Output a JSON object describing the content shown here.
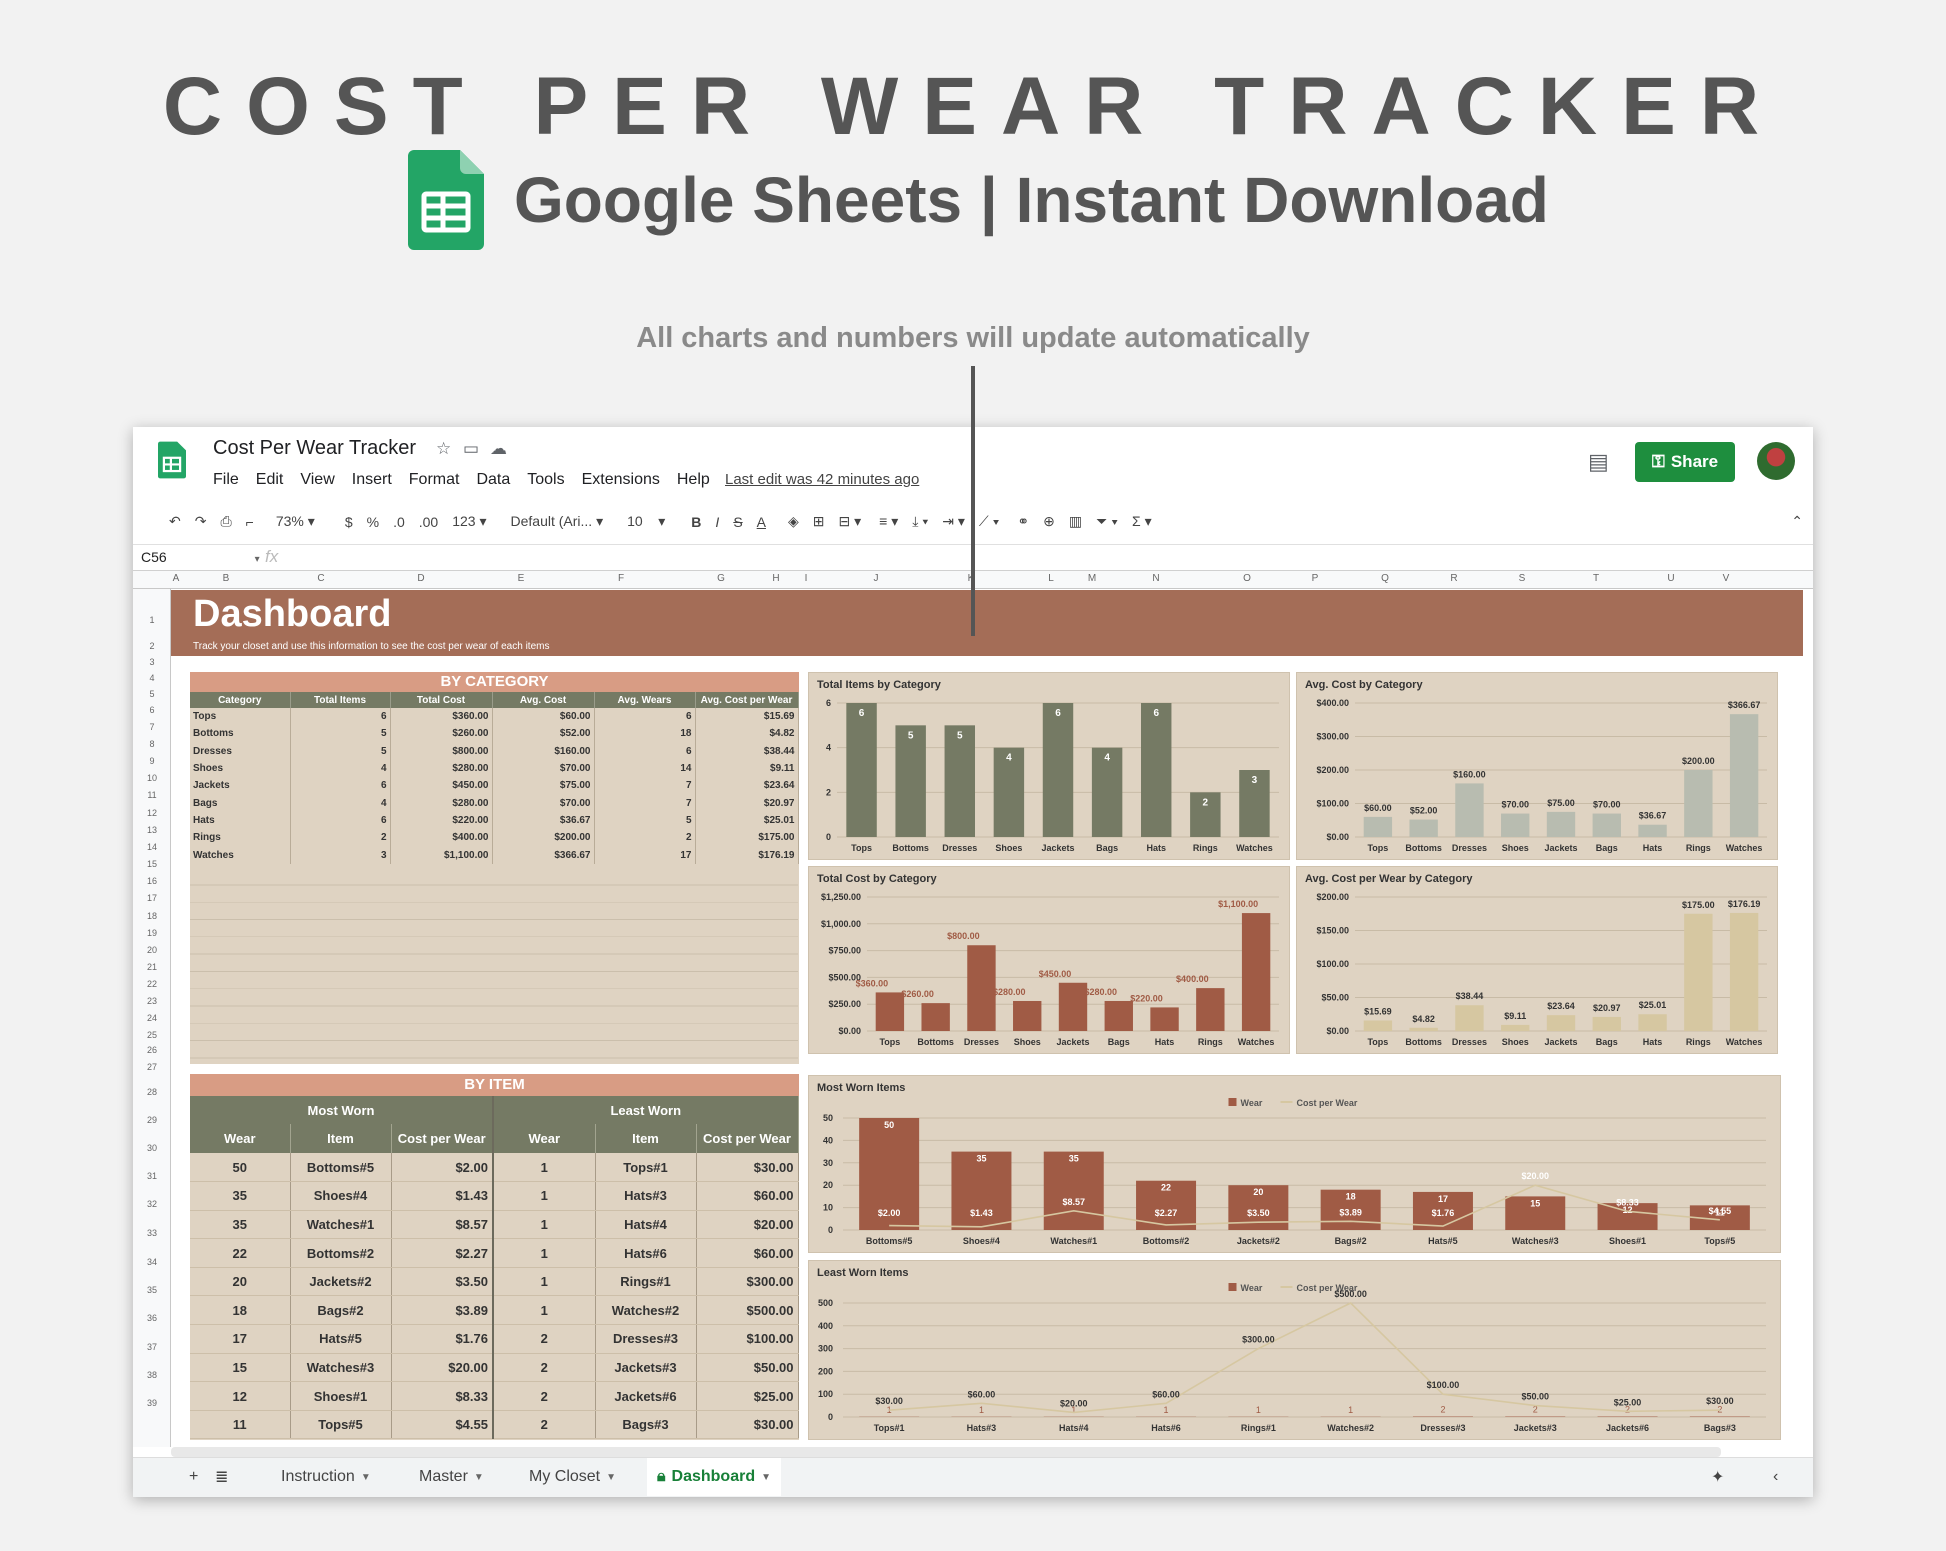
{
  "hero": {
    "title": "COST PER WEAR TRACKER",
    "subtitle": "Google Sheets | Instant Download",
    "tagline": "All charts and numbers will update automatically"
  },
  "app": {
    "doc_title": "Cost Per Wear Tracker",
    "menu": [
      "File",
      "Edit",
      "View",
      "Insert",
      "Format",
      "Data",
      "Tools",
      "Extensions",
      "Help"
    ],
    "last_edit": "Last edit was 42 minutes ago",
    "share_label": "Share"
  },
  "toolbar": {
    "zoom": "73%",
    "currency": "$",
    "percent": "%",
    "dec_less": ".0",
    "dec_more": ".00",
    "format": "123",
    "font": "Default (Ari...",
    "font_size": "10",
    "bold": "B",
    "italic": "I",
    "strike": "S",
    "text_color": "A",
    "sum": "Σ"
  },
  "formula": {
    "cell": "C56",
    "fx": "fx"
  },
  "columns": [
    "A",
    "B",
    "C",
    "D",
    "E",
    "F",
    "G",
    "H",
    "I",
    "J",
    "K",
    "L",
    "M",
    "N",
    "O",
    "P",
    "Q",
    "R",
    "S",
    "T",
    "U",
    "V"
  ],
  "rows": [
    "1",
    "2",
    "3",
    "4",
    "5",
    "6",
    "7",
    "8",
    "9",
    "10",
    "11",
    "12",
    "13",
    "14",
    "15",
    "16",
    "17",
    "18",
    "19",
    "20",
    "21",
    "22",
    "23",
    "24",
    "25",
    "26",
    "27",
    "28",
    "29",
    "30",
    "31",
    "32",
    "33",
    "34",
    "35",
    "36",
    "37",
    "38",
    "39"
  ],
  "dashboard": {
    "title": "Dashboard",
    "subtitle": "Track your closet and use this information to see the cost per wear of each items"
  },
  "by_category": {
    "title": "BY CATEGORY",
    "headers": [
      "Category",
      "Total Items",
      "Total Cost",
      "Avg. Cost",
      "Avg. Wears",
      "Avg. Cost per Wear"
    ],
    "rows": [
      [
        "Tops",
        "6",
        "$360.00",
        "$60.00",
        "6",
        "$15.69"
      ],
      [
        "Bottoms",
        "5",
        "$260.00",
        "$52.00",
        "18",
        "$4.82"
      ],
      [
        "Dresses",
        "5",
        "$800.00",
        "$160.00",
        "6",
        "$38.44"
      ],
      [
        "Shoes",
        "4",
        "$280.00",
        "$70.00",
        "14",
        "$9.11"
      ],
      [
        "Jackets",
        "6",
        "$450.00",
        "$75.00",
        "7",
        "$23.64"
      ],
      [
        "Bags",
        "4",
        "$280.00",
        "$70.00",
        "7",
        "$20.97"
      ],
      [
        "Hats",
        "6",
        "$220.00",
        "$36.67",
        "5",
        "$25.01"
      ],
      [
        "Rings",
        "2",
        "$400.00",
        "$200.00",
        "2",
        "$175.00"
      ],
      [
        "Watches",
        "3",
        "$1,100.00",
        "$366.67",
        "17",
        "$176.19"
      ]
    ]
  },
  "by_item": {
    "title": "BY ITEM",
    "group_most": "Most Worn",
    "group_least": "Least Worn",
    "headers": [
      "Wear",
      "Item",
      "Cost per Wear",
      "Wear",
      "Item",
      "Cost per Wear"
    ],
    "rows": [
      [
        "50",
        "Bottoms#5",
        "$2.00",
        "1",
        "Tops#1",
        "$30.00"
      ],
      [
        "35",
        "Shoes#4",
        "$1.43",
        "1",
        "Hats#3",
        "$60.00"
      ],
      [
        "35",
        "Watches#1",
        "$8.57",
        "1",
        "Hats#4",
        "$20.00"
      ],
      [
        "22",
        "Bottoms#2",
        "$2.27",
        "1",
        "Hats#6",
        "$60.00"
      ],
      [
        "20",
        "Jackets#2",
        "$3.50",
        "1",
        "Rings#1",
        "$300.00"
      ],
      [
        "18",
        "Bags#2",
        "$3.89",
        "1",
        "Watches#2",
        "$500.00"
      ],
      [
        "17",
        "Hats#5",
        "$1.76",
        "2",
        "Dresses#3",
        "$100.00"
      ],
      [
        "15",
        "Watches#3",
        "$20.00",
        "2",
        "Jackets#3",
        "$50.00"
      ],
      [
        "12",
        "Shoes#1",
        "$8.33",
        "2",
        "Jackets#6",
        "$25.00"
      ],
      [
        "11",
        "Tops#5",
        "$4.55",
        "2",
        "Bags#3",
        "$30.00"
      ]
    ]
  },
  "chart_data": [
    {
      "type": "bar",
      "title": "Total Items by Category",
      "categories": [
        "Tops",
        "Bottoms",
        "Dresses",
        "Shoes",
        "Jackets",
        "Bags",
        "Hats",
        "Rings",
        "Watches"
      ],
      "values": [
        6,
        5,
        5,
        4,
        6,
        4,
        6,
        2,
        3
      ],
      "labels": [
        "6",
        "5",
        "5",
        "4",
        "6",
        "4",
        "6",
        "2",
        "3"
      ],
      "ylim": [
        0,
        6
      ],
      "yticks": [
        "0",
        "2",
        "4",
        "6"
      ],
      "color": "#757a64",
      "labelColor": "#ffffff",
      "labelInside": true
    },
    {
      "type": "bar",
      "title": "Avg. Cost by Category",
      "categories": [
        "Tops",
        "Bottoms",
        "Dresses",
        "Shoes",
        "Jackets",
        "Bags",
        "Hats",
        "Rings",
        "Watches"
      ],
      "values": [
        60,
        52,
        160,
        70,
        75,
        70,
        36.67,
        200,
        366.67
      ],
      "labels": [
        "$60.00",
        "$52.00",
        "$160.00",
        "$70.00",
        "$75.00",
        "$70.00",
        "$36.67",
        "$200.00",
        "$366.67"
      ],
      "ylim": [
        0,
        400
      ],
      "yticks": [
        "$0.00",
        "$100.00",
        "$200.00",
        "$300.00",
        "$400.00"
      ],
      "color": "#b8bcb0",
      "labelColor": "#333333",
      "labelInside": false
    },
    {
      "type": "bar",
      "title": "Total Cost by Category",
      "categories": [
        "Tops",
        "Bottoms",
        "Dresses",
        "Shoes",
        "Jackets",
        "Bags",
        "Hats",
        "Rings",
        "Watches"
      ],
      "values": [
        360,
        260,
        800,
        280,
        450,
        280,
        220,
        400,
        1100
      ],
      "labels": [
        "$360.00",
        "$260.00",
        "$800.00",
        "$280.00",
        "$450.00",
        "$280.00",
        "$220.00",
        "$400.00",
        "$1,100.00"
      ],
      "ylim": [
        0,
        1250
      ],
      "yticks": [
        "$0.00",
        "$250.00",
        "$500.00",
        "$750.00",
        "$1,000.00",
        "$1,250.00"
      ],
      "color": "#a05b45",
      "labelColor": "#a05b45",
      "labelInside": false
    },
    {
      "type": "bar",
      "title": "Avg. Cost per Wear by Category",
      "categories": [
        "Tops",
        "Bottoms",
        "Dresses",
        "Shoes",
        "Jackets",
        "Bags",
        "Hats",
        "Rings",
        "Watches"
      ],
      "values": [
        15.69,
        4.82,
        38.44,
        9.11,
        23.64,
        20.97,
        25.01,
        175,
        176.19
      ],
      "labels": [
        "$15.69",
        "$4.82",
        "$38.44",
        "$9.11",
        "$23.64",
        "$20.97",
        "$25.01",
        "$175.00",
        "$176.19"
      ],
      "ylim": [
        0,
        200
      ],
      "yticks": [
        "$0.00",
        "$50.00",
        "$100.00",
        "$150.00",
        "$200.00"
      ],
      "color": "#d6c7a1",
      "labelColor": "#333333",
      "labelInside": false
    },
    {
      "type": "bar",
      "title": "Most Worn Items",
      "categories": [
        "Bottoms#5",
        "Shoes#4",
        "Watches#1",
        "Bottoms#2",
        "Jackets#2",
        "Bags#2",
        "Hats#5",
        "Watches#3",
        "Shoes#1",
        "Tops#5"
      ],
      "series": [
        {
          "name": "Wear",
          "values": [
            50,
            35,
            35,
            22,
            20,
            18,
            17,
            15,
            12,
            11
          ]
        },
        {
          "name": "Cost per Wear",
          "values": [
            2.0,
            1.43,
            8.57,
            2.27,
            3.5,
            3.89,
            1.76,
            20.0,
            8.33,
            4.55
          ]
        }
      ],
      "barLabels": [
        "50",
        "35",
        "35",
        "22",
        "20",
        "18",
        "17",
        "15",
        "12",
        "11"
      ],
      "lineLabels": [
        "$2.00",
        "$1.43",
        "$8.57",
        "$2.27",
        "$3.50",
        "$3.89",
        "$1.76",
        "$20.00",
        "$8.33",
        "$4.55"
      ],
      "ylim": [
        0,
        50
      ],
      "yticks": [
        "0",
        "10",
        "20",
        "30",
        "40",
        "50"
      ]
    },
    {
      "type": "bar",
      "title": "Least Worn Items",
      "categories": [
        "Tops#1",
        "Hats#3",
        "Hats#4",
        "Hats#6",
        "Rings#1",
        "Watches#2",
        "Dresses#3",
        "Jackets#3",
        "Jackets#6",
        "Bags#3"
      ],
      "series": [
        {
          "name": "Wear",
          "values": [
            1,
            1,
            1,
            1,
            1,
            1,
            2,
            2,
            2,
            2
          ]
        },
        {
          "name": "Cost per Wear",
          "values": [
            30,
            60,
            20,
            60,
            300,
            500,
            100,
            50,
            25,
            30
          ]
        }
      ],
      "barLabels": [
        "1",
        "1",
        "1",
        "1",
        "1",
        "1",
        "2",
        "2",
        "2",
        "2"
      ],
      "lineLabels": [
        "$30.00",
        "$60.00",
        "$20.00",
        "$60.00",
        "$300.00",
        "$500.00",
        "$100.00",
        "$50.00",
        "$25.00",
        "$30.00"
      ],
      "ylim": [
        0,
        500
      ],
      "yticks": [
        "0",
        "100",
        "200",
        "300",
        "400",
        "500"
      ]
    }
  ],
  "colors": {
    "banner": "#a46d57",
    "panel": "#dfd3c2",
    "header": "#757a64",
    "accent": "#d89c84",
    "share": "#1e8e3e"
  },
  "tabs": [
    {
      "label": "Instruction"
    },
    {
      "label": "Master"
    },
    {
      "label": "My Closet"
    },
    {
      "label": "Dashboard",
      "active": true
    }
  ]
}
